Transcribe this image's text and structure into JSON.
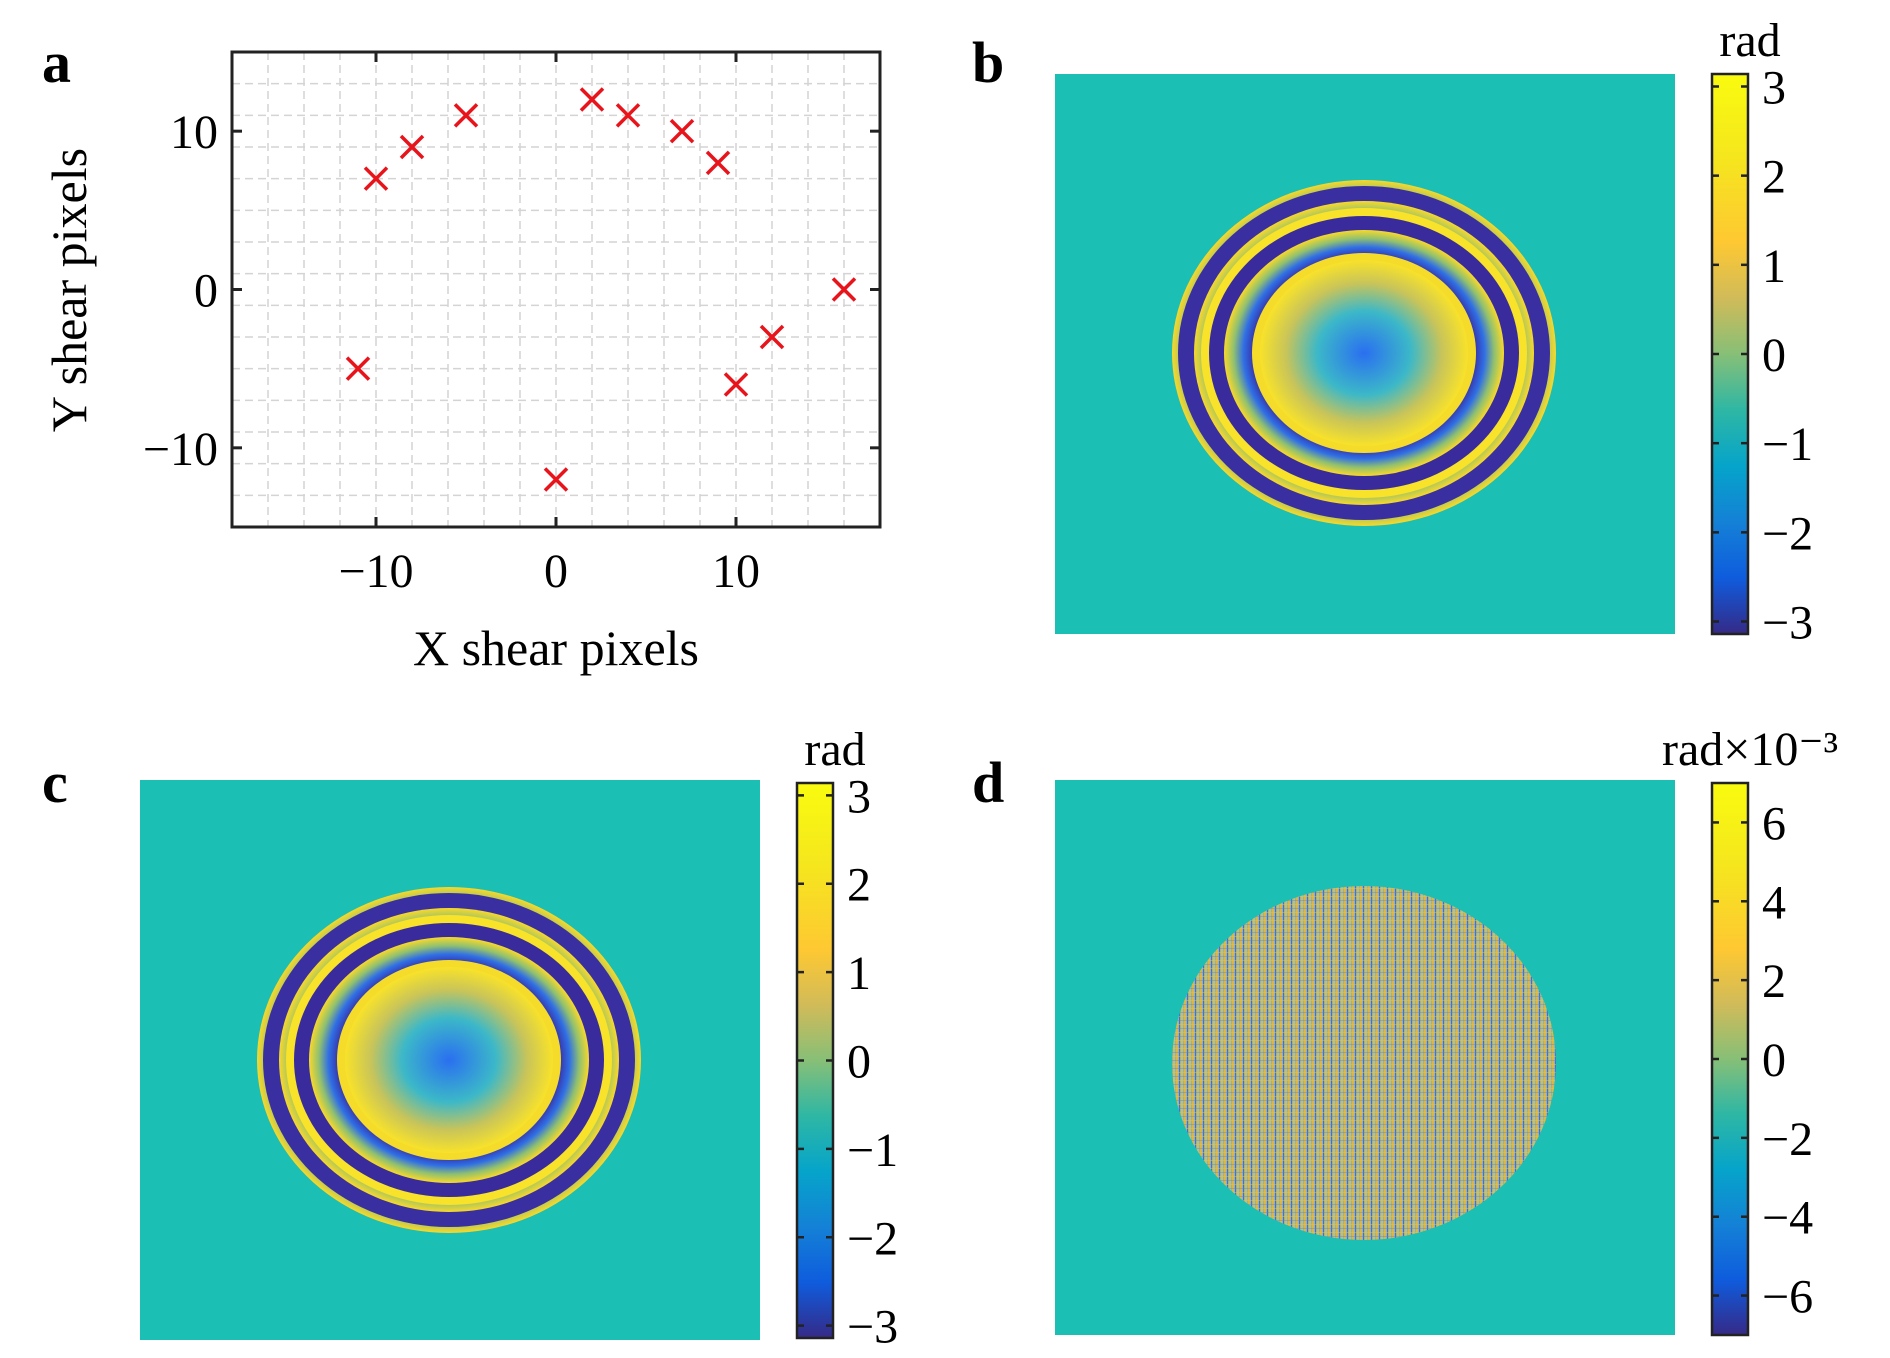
{
  "panels": {
    "a": {
      "label": "a"
    },
    "b": {
      "label": "b"
    },
    "c": {
      "label": "c"
    },
    "d": {
      "label": "d"
    }
  },
  "colors": {
    "marker": "#e8141c",
    "background_teal": "#1bbfb3",
    "axis": "#222222",
    "grid": "#d4d4d4"
  },
  "chart_data": [
    {
      "panel": "a",
      "type": "scatter",
      "xlabel": "X shear pixels",
      "ylabel": "Y shear pixels",
      "xlim": [
        -18,
        18
      ],
      "ylim": [
        -15,
        15
      ],
      "xticks": [
        -10,
        0,
        10
      ],
      "yticks": [
        -10,
        0,
        10
      ],
      "xtick_labels": [
        "−10",
        "0",
        "10"
      ],
      "ytick_labels": [
        "−10",
        "0",
        "10"
      ],
      "grid": true,
      "marker": "x",
      "points": [
        {
          "x": -11,
          "y": -5
        },
        {
          "x": -10,
          "y": 7
        },
        {
          "x": -8,
          "y": 9
        },
        {
          "x": -5,
          "y": 11
        },
        {
          "x": 0,
          "y": -12
        },
        {
          "x": 2,
          "y": 12
        },
        {
          "x": 4,
          "y": 11
        },
        {
          "x": 7,
          "y": 10
        },
        {
          "x": 9,
          "y": 8
        },
        {
          "x": 10,
          "y": -6
        },
        {
          "x": 12,
          "y": -3
        },
        {
          "x": 16,
          "y": 0
        }
      ]
    },
    {
      "panel": "b",
      "type": "heatmap",
      "pattern": "concentric wrapped phase rings",
      "colorbar_label": "rad",
      "clim": [
        -3.14,
        3.14
      ],
      "colorbar_ticks": [
        3,
        2,
        1,
        0,
        -1,
        -2,
        -3
      ],
      "colorbar_tick_labels": [
        "3",
        "2",
        "1",
        "0",
        "−1",
        "−2",
        "−3"
      ]
    },
    {
      "panel": "c",
      "type": "heatmap",
      "pattern": "concentric wrapped phase rings",
      "colorbar_label": "rad",
      "clim": [
        -3.14,
        3.14
      ],
      "colorbar_ticks": [
        3,
        2,
        1,
        0,
        -1,
        -2,
        -3
      ],
      "colorbar_tick_labels": [
        "3",
        "2",
        "1",
        "0",
        "−1",
        "−2",
        "−3"
      ]
    },
    {
      "panel": "d",
      "type": "heatmap",
      "pattern": "residual with vertical striping",
      "colorbar_label": "rad×10⁻³",
      "clim": [
        -7,
        7
      ],
      "colorbar_ticks": [
        6,
        4,
        2,
        0,
        -2,
        -4,
        -6
      ],
      "colorbar_tick_labels": [
        "6",
        "4",
        "2",
        "0",
        "−2",
        "−4",
        "−6"
      ]
    }
  ]
}
